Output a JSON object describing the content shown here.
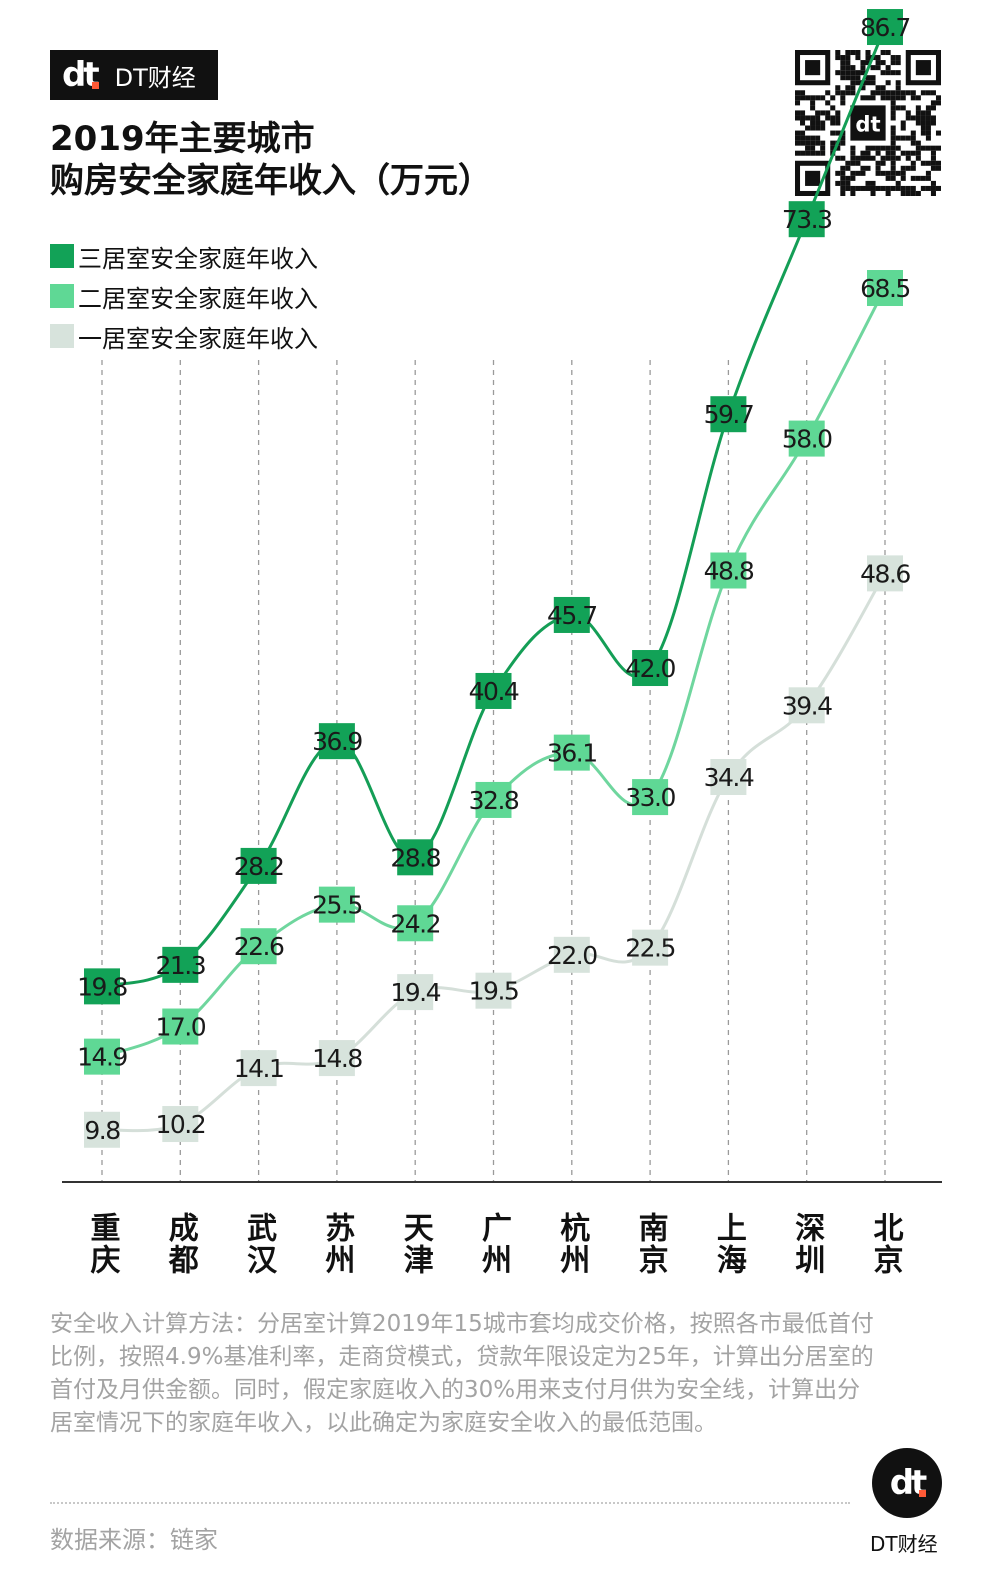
{
  "brand": {
    "logo_mark": "dt",
    "name": "DT财经"
  },
  "title": {
    "line1": "2019年主要城市",
    "line2": "购房安全家庭年收入（万元）"
  },
  "colors": {
    "three_bedroom": "#12a257",
    "two_bedroom": "#5fd895",
    "one_bedroom": "#d7e3dc",
    "line_three": "#149e56",
    "line_two": "#6fd69e",
    "line_one": "#d5dfd9",
    "brand_dot": "#ff5a36"
  },
  "chart_data": {
    "type": "line",
    "title": "2019年主要城市购房安全家庭年收入（万元）",
    "categories": [
      "重庆",
      "成都",
      "武汉",
      "苏州",
      "天津",
      "广州",
      "杭州",
      "南京",
      "上海",
      "深圳",
      "北京"
    ],
    "series": [
      {
        "name": "三居室安全家庭年收入",
        "values": [
          19.8,
          21.3,
          28.2,
          36.9,
          28.8,
          40.4,
          45.7,
          42.0,
          59.7,
          73.3,
          86.7
        ]
      },
      {
        "name": "二居室安全家庭年收入",
        "values": [
          14.9,
          17.0,
          22.6,
          25.5,
          24.2,
          32.8,
          36.1,
          33.0,
          48.8,
          58.0,
          68.5
        ]
      },
      {
        "name": "一居室安全家庭年收入",
        "values": [
          9.8,
          10.2,
          14.1,
          14.8,
          19.4,
          19.5,
          22.0,
          22.5,
          34.4,
          39.4,
          48.6
        ]
      }
    ],
    "ylim": [
      0,
      92
    ],
    "grid": "vertical-dashed",
    "legend_position": "top-left"
  },
  "note": "安全收入计算方法：分居室计算2019年15城市套均成交价格，按照各市最低首付比例，按照4.9%基准利率，走商贷模式，贷款年限设定为25年，计算出分居室的首付及月供金额。同时，假定家庭收入的30%用来支付月供为安全线，计算出分居室情况下的家庭年收入，以此确定为家庭安全收入的最低范围。",
  "source": "数据来源：链家",
  "footer": {
    "logo_mark": "dt",
    "brand_name": "DT财经"
  }
}
